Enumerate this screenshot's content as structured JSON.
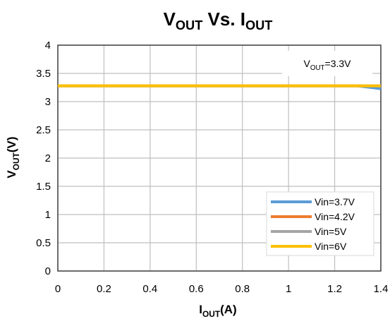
{
  "chart_data": {
    "type": "line",
    "title": {
      "main": "V",
      "sub": "OUT",
      "mid": " Vs. I",
      "sub2": "OUT"
    },
    "xlabel": {
      "main": "I",
      "sub": "OUT",
      "rest": "(A)"
    },
    "ylabel": {
      "main": "V",
      "sub": "OUT",
      "rest": "(V)"
    },
    "xlim": [
      0,
      1.4
    ],
    "ylim": [
      0,
      4
    ],
    "xticks": [
      "0",
      "0.2",
      "0.4",
      "0.6",
      "0.8",
      "1",
      "1.2",
      "1.4"
    ],
    "yticks": [
      "0",
      "0.5",
      "1",
      "1.5",
      "2",
      "2.5",
      "3",
      "3.5",
      "4"
    ],
    "grid": true,
    "legend_position": "bottom-right",
    "annotation": {
      "main": "V",
      "sub": "OUT",
      "rest": "=3.3V"
    },
    "series": [
      {
        "name": "Vin=3.7V",
        "color": "#5B9BD5",
        "x": [
          0,
          1.3,
          1.4
        ],
        "y": [
          3.28,
          3.28,
          3.23
        ]
      },
      {
        "name": "Vin=4.2V",
        "color": "#ED7D31",
        "x": [
          0,
          1.4
        ],
        "y": [
          3.28,
          3.28
        ]
      },
      {
        "name": "Vin=5V",
        "color": "#A5A5A5",
        "x": [
          0,
          1.4
        ],
        "y": [
          3.28,
          3.28
        ]
      },
      {
        "name": "Vin=6V",
        "color": "#FFC000",
        "x": [
          0,
          1.4
        ],
        "y": [
          3.28,
          3.28
        ]
      }
    ]
  }
}
